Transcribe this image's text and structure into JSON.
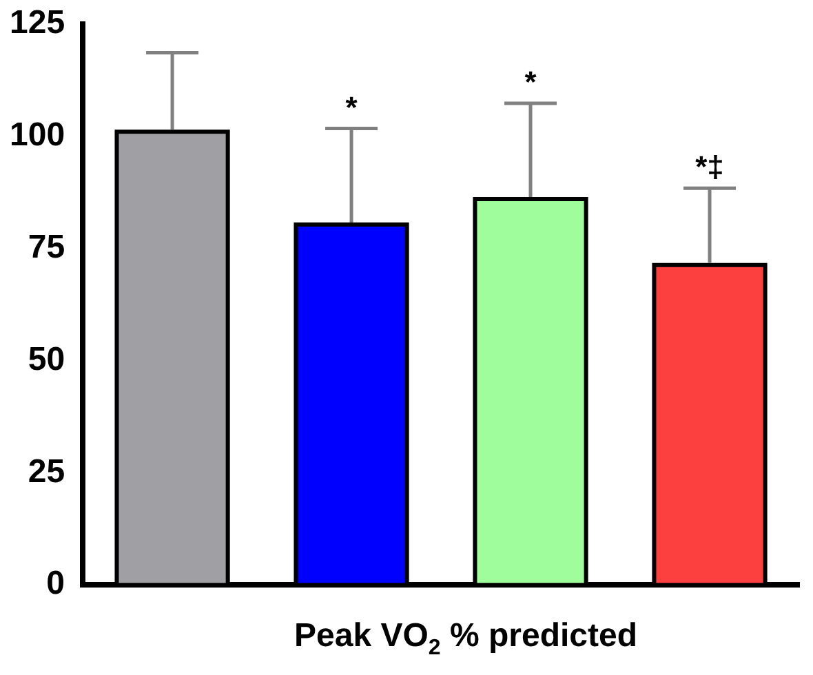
{
  "chart_data": {
    "type": "bar",
    "xlabel": "Peak VO$_{2}$ % predicted",
    "categories": [
      null,
      null,
      null,
      null
    ],
    "values": [
      101,
      80.3,
      86,
      71.3
    ],
    "colors": [
      "#a09fa4",
      "#0000fe",
      "#a0fd9b",
      "#fc4040"
    ],
    "errors": [
      [
        101,
        118.6
      ],
      [
        80.3,
        101.7
      ],
      [
        86,
        107.3
      ],
      [
        71.3,
        88.4
      ]
    ],
    "annotations": [
      "*",
      "*",
      "*‡"
    ],
    "ylim": [
      0,
      125
    ],
    "yticks": [
      0,
      25,
      50,
      75,
      100,
      125
    ],
    "grid": false,
    "legend": false
  }
}
